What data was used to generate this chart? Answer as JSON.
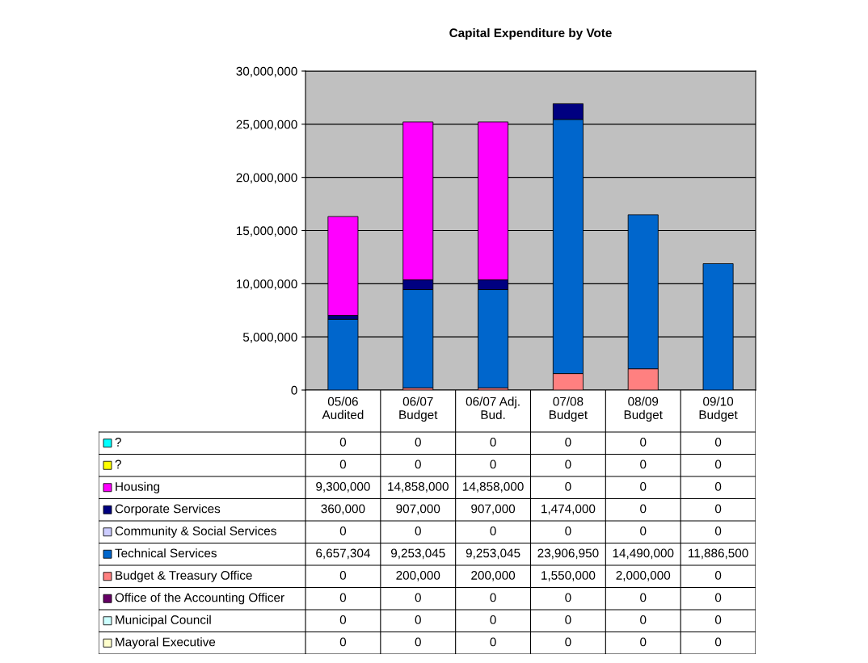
{
  "chart_data": {
    "type": "bar",
    "title": "Capital Expenditure by Vote",
    "stacked": true,
    "grid": "y",
    "legend": "bottom left",
    "data_labels": true,
    "categories": [
      "05/06\nAudited",
      "06/07\nBudget",
      "06/07 Adj.\nBud.",
      "07/08\nBudget",
      "08/09\nBudget",
      "09/10\nBudget"
    ],
    "ylim": [
      0,
      30000000
    ],
    "yticks": [
      {
        "value": 0,
        "label": "0"
      },
      {
        "value": 5000000,
        "label": "5,000,000"
      },
      {
        "value": 10000000,
        "label": "10,000,000"
      },
      {
        "value": 15000000,
        "label": "15,000,000"
      },
      {
        "value": 20000000,
        "label": "20,000,000"
      },
      {
        "value": 25000000,
        "label": "25,000,000"
      },
      {
        "value": 30000000,
        "label": "30,000,000"
      }
    ],
    "series": [
      {
        "name": "Mayoral Executive",
        "color": "#ffffcc",
        "values": [
          0,
          0,
          0,
          0,
          0,
          0
        ],
        "value_labels": [
          "0",
          "0",
          "0",
          "0",
          "0",
          "0"
        ]
      },
      {
        "name": "Municipal Council",
        "color": "#ccffff",
        "values": [
          0,
          0,
          0,
          0,
          0,
          0
        ],
        "value_labels": [
          "0",
          "0",
          "0",
          "0",
          "0",
          "0"
        ]
      },
      {
        "name": "Office of the Accounting Officer",
        "color": "#660066",
        "values": [
          0,
          0,
          0,
          0,
          0,
          0
        ],
        "value_labels": [
          "0",
          "0",
          "0",
          "0",
          "0",
          "0"
        ]
      },
      {
        "name": "Budget & Treasury Office",
        "color": "#ff8080",
        "values": [
          0,
          200000,
          200000,
          1550000,
          2000000,
          0
        ],
        "value_labels": [
          "0",
          "200,000",
          "200,000",
          "1,550,000",
          "2,000,000",
          "0"
        ]
      },
      {
        "name": "Technical Services",
        "color": "#0066cc",
        "values": [
          6657304,
          9253045,
          9253045,
          23906950,
          14490000,
          11886500
        ],
        "value_labels": [
          "6,657,304",
          "9,253,045",
          "9,253,045",
          "23,906,950",
          "14,490,000",
          "11,886,500"
        ]
      },
      {
        "name": "Community & Social Services",
        "color": "#ccccff",
        "values": [
          0,
          0,
          0,
          0,
          0,
          0
        ],
        "value_labels": [
          "0",
          "0",
          "0",
          "0",
          "0",
          "0"
        ]
      },
      {
        "name": "Corporate Services",
        "color": "#000080",
        "values": [
          360000,
          907000,
          907000,
          1474000,
          0,
          0
        ],
        "value_labels": [
          "360,000",
          "907,000",
          "907,000",
          "1,474,000",
          "0",
          "0"
        ]
      },
      {
        "name": "Housing",
        "color": "#ff00ff",
        "values": [
          9300000,
          14858000,
          14858000,
          0,
          0,
          0
        ],
        "value_labels": [
          "9,300,000",
          "14,858,000",
          "14,858,000",
          "0",
          "0",
          "0"
        ]
      },
      {
        "name": "?",
        "color": "#ffff00",
        "values": [
          0,
          0,
          0,
          0,
          0,
          0
        ],
        "value_labels": [
          "0",
          "0",
          "0",
          "0",
          "0",
          "0"
        ]
      },
      {
        "name": "?",
        "color": "#00ffff",
        "values": [
          0,
          0,
          0,
          0,
          0,
          0
        ],
        "value_labels": [
          "0",
          "0",
          "0",
          "0",
          "0",
          "0"
        ]
      }
    ]
  }
}
